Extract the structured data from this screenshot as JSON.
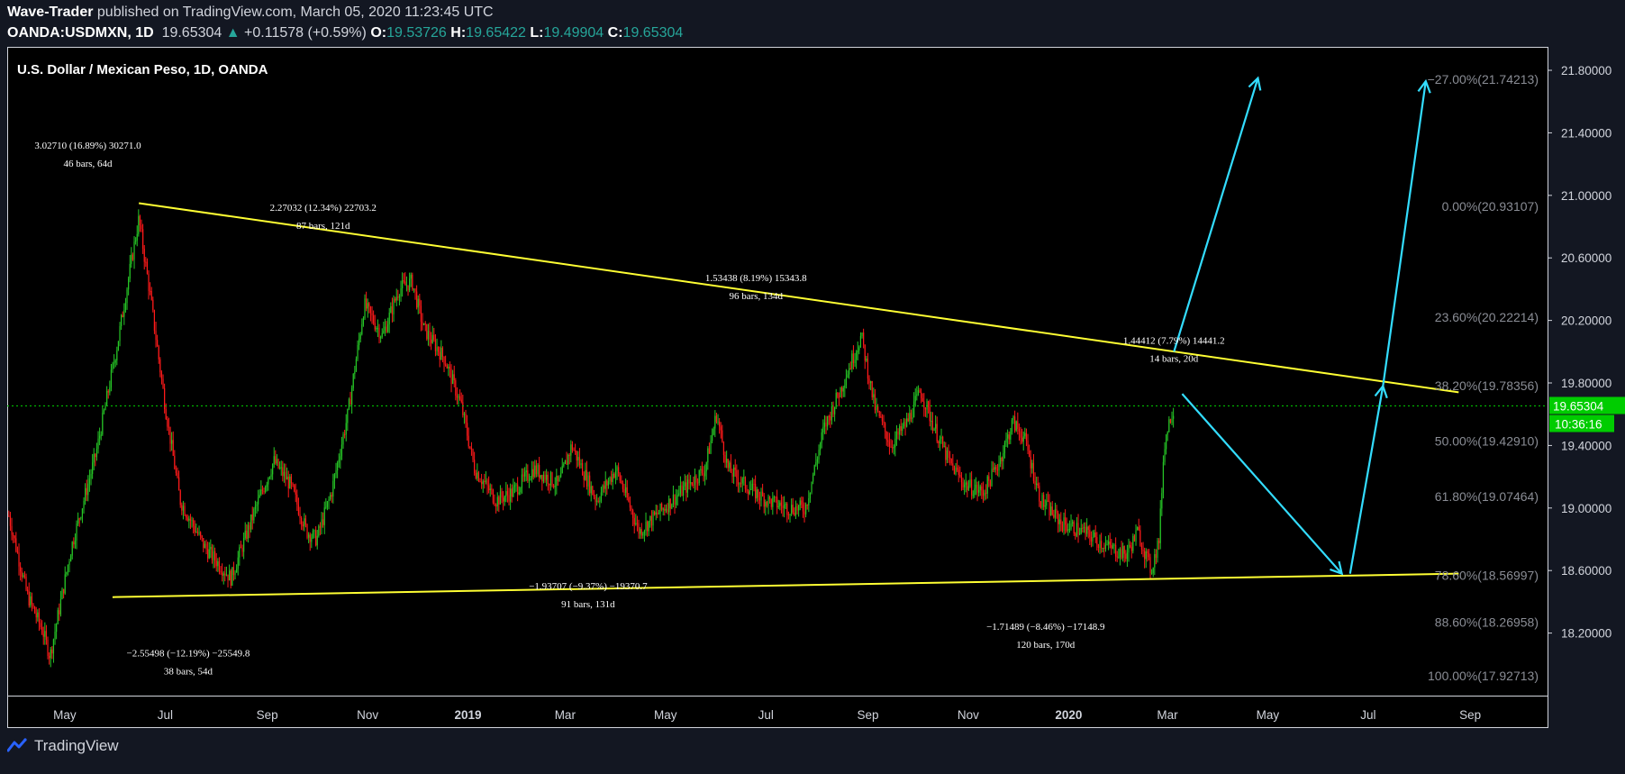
{
  "header": {
    "author": "Wave-Trader",
    "published_text": "published on TradingView.com, March 05, 2020 11:23:45 UTC",
    "symbol": "OANDA:USDMXN, 1D",
    "last": "19.65304",
    "change": "+0.11578 (+0.59%)",
    "o_label": "O:",
    "o_val": "19.53726",
    "h_label": "H:",
    "h_val": "19.65422",
    "l_label": "L:",
    "l_val": "19.49904",
    "c_label": "C:",
    "c_val": "19.65304"
  },
  "footer": {
    "brand": "TradingView"
  },
  "colors": {
    "background": "#000000",
    "page": "#131722",
    "candle_up": "#26c626",
    "candle_down": "#ff1a1a",
    "trendline": "#ffff33",
    "projection": "#33ddff",
    "price_line": "#00cc00",
    "fib_text": "#8a8d95"
  },
  "chart_data": {
    "type": "candlestick",
    "title": "U.S. Dollar / Mexican Peso, 1D, OANDA",
    "x_ticks": [
      "May",
      "Jul",
      "Sep",
      "Nov",
      "2019",
      "Mar",
      "May",
      "Jul",
      "Sep",
      "Nov",
      "2020",
      "Mar",
      "May",
      "Jul",
      "Sep"
    ],
    "y_ticks": [
      "21.80000",
      "21.40000",
      "21.00000",
      "20.60000",
      "20.20000",
      "19.80000",
      "19.40000",
      "19.00000",
      "18.60000",
      "18.20000"
    ],
    "ylim": [
      17.8,
      21.95
    ],
    "current_price": "19.65304",
    "countdown": "10:36:16",
    "price_path": [
      [
        "2018-03-28",
        18.95
      ],
      [
        "2018-04-08",
        18.45
      ],
      [
        "2018-04-18",
        18.2
      ],
      [
        "2018-04-22",
        18.05
      ],
      [
        "2018-05-05",
        18.75
      ],
      [
        "2018-05-20",
        19.35
      ],
      [
        "2018-06-02",
        20.05
      ],
      [
        "2018-06-10",
        20.55
      ],
      [
        "2018-06-15",
        20.85
      ],
      [
        "2018-06-22",
        20.35
      ],
      [
        "2018-07-01",
        19.65
      ],
      [
        "2018-07-10",
        19.05
      ],
      [
        "2018-07-25",
        18.75
      ],
      [
        "2018-08-10",
        18.55
      ],
      [
        "2018-08-25",
        19.0
      ],
      [
        "2018-09-05",
        19.3
      ],
      [
        "2018-09-15",
        19.15
      ],
      [
        "2018-09-25",
        18.85
      ],
      [
        "2018-10-01",
        18.8
      ],
      [
        "2018-10-10",
        19.1
      ],
      [
        "2018-10-20",
        19.6
      ],
      [
        "2018-10-30",
        20.3
      ],
      [
        "2018-11-10",
        20.1
      ],
      [
        "2018-11-20",
        20.4
      ],
      [
        "2018-11-28",
        20.45
      ],
      [
        "2018-12-05",
        20.15
      ],
      [
        "2018-12-18",
        19.95
      ],
      [
        "2018-12-28",
        19.65
      ],
      [
        "2019-01-05",
        19.25
      ],
      [
        "2019-01-18",
        19.05
      ],
      [
        "2019-01-28",
        19.1
      ],
      [
        "2019-02-10",
        19.25
      ],
      [
        "2019-02-25",
        19.15
      ],
      [
        "2019-03-05",
        19.4
      ],
      [
        "2019-03-20",
        19.05
      ],
      [
        "2019-04-01",
        19.25
      ],
      [
        "2019-04-15",
        18.85
      ],
      [
        "2019-04-25",
        18.95
      ],
      [
        "2019-05-10",
        19.1
      ],
      [
        "2019-05-25",
        19.25
      ],
      [
        "2019-06-01",
        19.6
      ],
      [
        "2019-06-08",
        19.25
      ],
      [
        "2019-06-18",
        19.15
      ],
      [
        "2019-07-01",
        19.05
      ],
      [
        "2019-07-15",
        19.0
      ],
      [
        "2019-07-25",
        19.0
      ],
      [
        "2019-08-05",
        19.5
      ],
      [
        "2019-08-15",
        19.75
      ],
      [
        "2019-08-28",
        20.1
      ],
      [
        "2019-09-05",
        19.65
      ],
      [
        "2019-09-15",
        19.4
      ],
      [
        "2019-09-25",
        19.55
      ],
      [
        "2019-10-03",
        19.75
      ],
      [
        "2019-10-10",
        19.55
      ],
      [
        "2019-10-20",
        19.3
      ],
      [
        "2019-10-30",
        19.15
      ],
      [
        "2019-11-10",
        19.1
      ],
      [
        "2019-11-20",
        19.3
      ],
      [
        "2019-11-28",
        19.55
      ],
      [
        "2019-12-05",
        19.45
      ],
      [
        "2019-12-15",
        19.05
      ],
      [
        "2019-12-28",
        18.9
      ],
      [
        "2020-01-10",
        18.85
      ],
      [
        "2020-01-25",
        18.75
      ],
      [
        "2020-02-05",
        18.7
      ],
      [
        "2020-02-12",
        18.85
      ],
      [
        "2020-02-20",
        18.6
      ],
      [
        "2020-02-25",
        18.8
      ],
      [
        "2020-02-28",
        19.4
      ],
      [
        "2020-03-02",
        19.55
      ],
      [
        "2020-03-05",
        19.65
      ]
    ],
    "trendlines": [
      {
        "name": "upper",
        "from": [
          "2018-06-15",
          20.95
        ],
        "to": [
          "2020-08-25",
          19.74
        ]
      },
      {
        "name": "lower",
        "from": [
          "2018-05-30",
          18.43
        ],
        "to": [
          "2020-08-25",
          18.58
        ]
      }
    ],
    "projection_arrows": [
      {
        "from": [
          "2020-03-05",
          20.0
        ],
        "to": [
          "2020-04-25",
          21.75
        ]
      },
      {
        "from": [
          "2020-03-10",
          19.73
        ],
        "to": [
          "2020-06-15",
          18.58
        ]
      },
      {
        "from": [
          "2020-06-20",
          18.58
        ],
        "to": [
          "2020-07-10",
          19.78
        ]
      },
      {
        "from": [
          "2020-07-10",
          19.78
        ],
        "to": [
          "2020-08-05",
          21.73
        ]
      }
    ],
    "fib_levels": [
      {
        "label": "−27.00%(21.74213)",
        "value": 21.74213
      },
      {
        "label": "0.00%(20.93107)",
        "value": 20.93107
      },
      {
        "label": "23.60%(20.22214)",
        "value": 20.22214
      },
      {
        "label": "38.20%(19.78356)",
        "value": 19.78356
      },
      {
        "label": "50.00%(19.42910)",
        "value": 19.4291
      },
      {
        "label": "61.80%(19.07464)",
        "value": 19.07464
      },
      {
        "label": "78.60%(18.56997)",
        "value": 18.56997
      },
      {
        "label": "88.60%(18.26958)",
        "value": 18.26958
      },
      {
        "label": "100.00%(17.92713)",
        "value": 17.92713
      }
    ],
    "measure_annotations": [
      {
        "line1": "3.02710 (16.89%) 30271.0",
        "line2": "46 bars, 64d",
        "date": "2018-05-15",
        "value": 21.3
      },
      {
        "line1": "2.27032 (12.34%) 22703.2",
        "line2": "87 bars, 121d",
        "date": "2018-10-05",
        "value": 20.9
      },
      {
        "line1": "1.53438 (8.19%) 15343.8",
        "line2": "96 bars, 134d",
        "date": "2019-06-25",
        "value": 20.45
      },
      {
        "line1": "1.44412 (7.79%) 14441.2",
        "line2": "14 bars, 20d",
        "date": "2020-03-05",
        "value": 20.05
      },
      {
        "line1": "−2.55498 (−12.19%) −25549.8",
        "line2": "38 bars, 54d",
        "date": "2018-07-15",
        "value": 18.05
      },
      {
        "line1": "−1.93707 (−9.37%) −19370.7",
        "line2": "91 bars, 131d",
        "date": "2019-03-15",
        "value": 18.48
      },
      {
        "line1": "−1.71489 (−8.46%) −17148.9",
        "line2": "120 bars, 170d",
        "date": "2019-12-18",
        "value": 18.22
      }
    ]
  }
}
